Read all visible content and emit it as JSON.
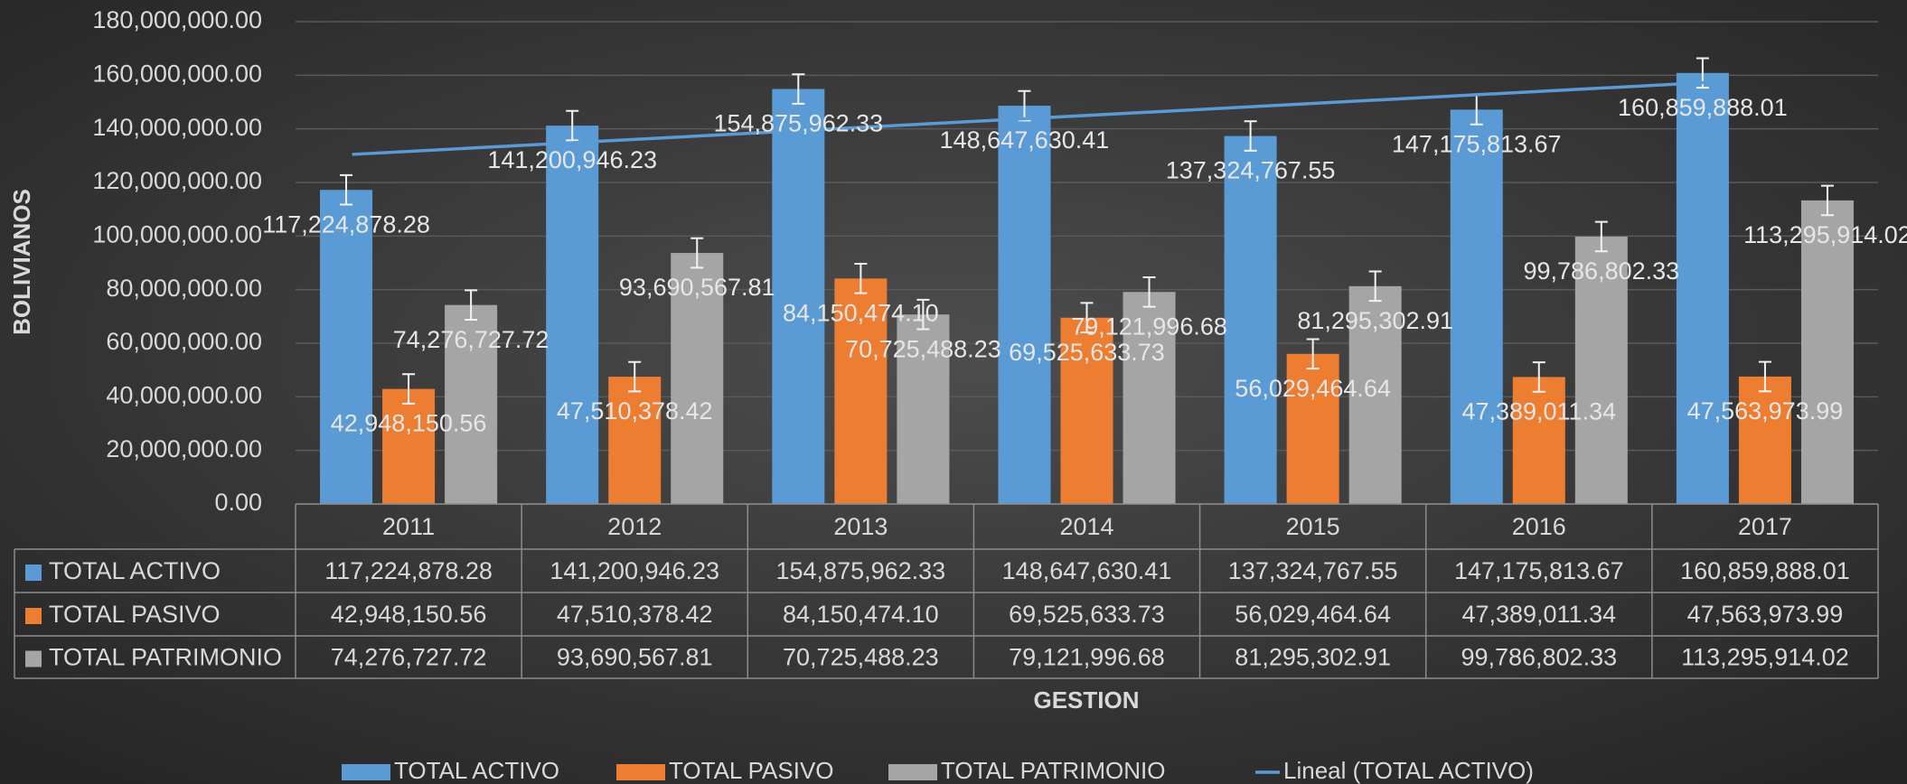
{
  "chart_data": {
    "type": "bar",
    "y_label": "BOLIVIANOS",
    "x_label": "GESTION",
    "categories": [
      "2011",
      "2012",
      "2013",
      "2014",
      "2015",
      "2016",
      "2017"
    ],
    "series": [
      {
        "name": "TOTAL ACTIVO",
        "color": "#5b9bd5",
        "values": [
          117224878.28,
          141200946.23,
          154875962.33,
          148647630.41,
          137324767.55,
          147175813.67,
          160859888.01
        ],
        "value_labels": [
          "117,224,878.28",
          "141,200,946.23",
          "154,875,962.33",
          "148,647,630.41",
          "137,324,767.55",
          "147,175,813.67",
          "160,859,888.01"
        ]
      },
      {
        "name": "TOTAL PASIVO",
        "color": "#ed7d31",
        "values": [
          42948150.56,
          47510378.42,
          84150474.1,
          69525633.73,
          56029464.64,
          47389011.34,
          47563973.99
        ],
        "value_labels": [
          "42,948,150.56",
          "47,510,378.42",
          "84,150,474.10",
          "69,525,633.73",
          "56,029,464.64",
          "47,389,011.34",
          "47,563,973.99"
        ]
      },
      {
        "name": "TOTAL PATRIMONIO",
        "color": "#a5a5a5",
        "values": [
          74276727.72,
          93690567.81,
          70725488.23,
          79121996.68,
          81295302.91,
          99786802.33,
          113295914.02
        ],
        "value_labels": [
          "74,276,727.72",
          "93,690,567.81",
          "70,725,488.23",
          "79,121,996.68",
          "81,295,302.91",
          "99,786,802.33",
          "113,295,914.02"
        ]
      }
    ],
    "error": 5500000,
    "trendline": {
      "name": "Lineal (TOTAL ACTIVO)",
      "color": "#5b9bd5",
      "values": [
        130470000,
        134950000,
        139420000,
        143900000,
        148370000,
        152850000,
        157330000
      ]
    },
    "ylim": [
      0,
      180000000
    ],
    "yticks": [
      {
        "value": 0,
        "label": "0.00"
      },
      {
        "value": 20000000,
        "label": "20,000,000.00"
      },
      {
        "value": 40000000,
        "label": "40,000,000.00"
      },
      {
        "value": 60000000,
        "label": "60,000,000.00"
      },
      {
        "value": 80000000,
        "label": "80,000,000.00"
      },
      {
        "value": 100000000,
        "label": "100,000,000.00"
      },
      {
        "value": 120000000,
        "label": "120,000,000.00"
      },
      {
        "value": 140000000,
        "label": "140,000,000.00"
      },
      {
        "value": 160000000,
        "label": "160,000,000.00"
      },
      {
        "value": 180000000,
        "label": "180,000,000.00"
      }
    ],
    "grid": true,
    "legend": "bottom"
  }
}
